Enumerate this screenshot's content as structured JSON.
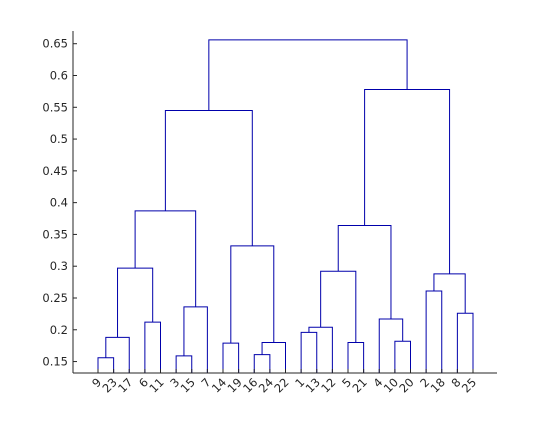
{
  "chart_data": {
    "type": "dendrogram",
    "title": "",
    "xlabel": "",
    "ylabel": "",
    "ylim": [
      0.132,
      0.67
    ],
    "y_ticks": [
      0.15,
      0.2,
      0.25,
      0.3,
      0.35,
      0.4,
      0.45,
      0.5,
      0.55,
      0.6,
      0.65
    ],
    "y_tick_labels": [
      "0.15",
      "0.2",
      "0.25",
      "0.3",
      "0.35",
      "0.4",
      "0.45",
      "0.5",
      "0.55",
      "0.6",
      "0.65"
    ],
    "leaf_order": [
      "9",
      "23",
      "17",
      "6",
      "11",
      "3",
      "15",
      "7",
      "14",
      "19",
      "16",
      "24",
      "22",
      "1",
      "13",
      "12",
      "5",
      "21",
      "4",
      "10",
      "20",
      "2",
      "18",
      "8",
      "25"
    ],
    "link_color": "#0000ab",
    "merges": [
      {
        "left": "9",
        "right": "23",
        "height": 0.156
      },
      {
        "left": "9|23",
        "right": "17",
        "height": 0.188
      },
      {
        "left": "6",
        "right": "11",
        "height": 0.212
      },
      {
        "left": "9|23|17",
        "right": "6|11",
        "height": 0.297
      },
      {
        "left": "3",
        "right": "15",
        "height": 0.159
      },
      {
        "left": "3|15",
        "right": "7",
        "height": 0.236
      },
      {
        "left": "9|23|17|6|11",
        "right": "3|15|7",
        "height": 0.387
      },
      {
        "left": "16",
        "right": "24",
        "height": 0.161
      },
      {
        "left": "14",
        "right": "19",
        "height": 0.179
      },
      {
        "left": "16|24",
        "right": "22",
        "height": 0.18
      },
      {
        "left": "14|19",
        "right": "16|24|22",
        "height": 0.332
      },
      {
        "left": "9|23|17|6|11|3|15|7",
        "right": "14|19|16|24|22",
        "height": 0.545
      },
      {
        "left": "1",
        "right": "13",
        "height": 0.196
      },
      {
        "left": "1|13",
        "right": "12",
        "height": 0.204
      },
      {
        "left": "5",
        "right": "21",
        "height": 0.18
      },
      {
        "left": "1|13|12",
        "right": "5|21",
        "height": 0.292
      },
      {
        "left": "10",
        "right": "20",
        "height": 0.182
      },
      {
        "left": "4",
        "right": "10|20",
        "height": 0.217
      },
      {
        "left": "1|13|12|5|21",
        "right": "4|10|20",
        "height": 0.364
      },
      {
        "left": "2",
        "right": "18",
        "height": 0.261
      },
      {
        "left": "8",
        "right": "25",
        "height": 0.226
      },
      {
        "left": "2|18",
        "right": "8|25",
        "height": 0.288
      },
      {
        "left": "1|13|12|5|21|4|10|20",
        "right": "2|18|8|25",
        "height": 0.578
      },
      {
        "left": "9|23|17|6|11|3|15|7|14|19|16|24|22",
        "right": "1|13|12|5|21|4|10|20|2|18|8|25",
        "height": 0.656
      }
    ]
  }
}
